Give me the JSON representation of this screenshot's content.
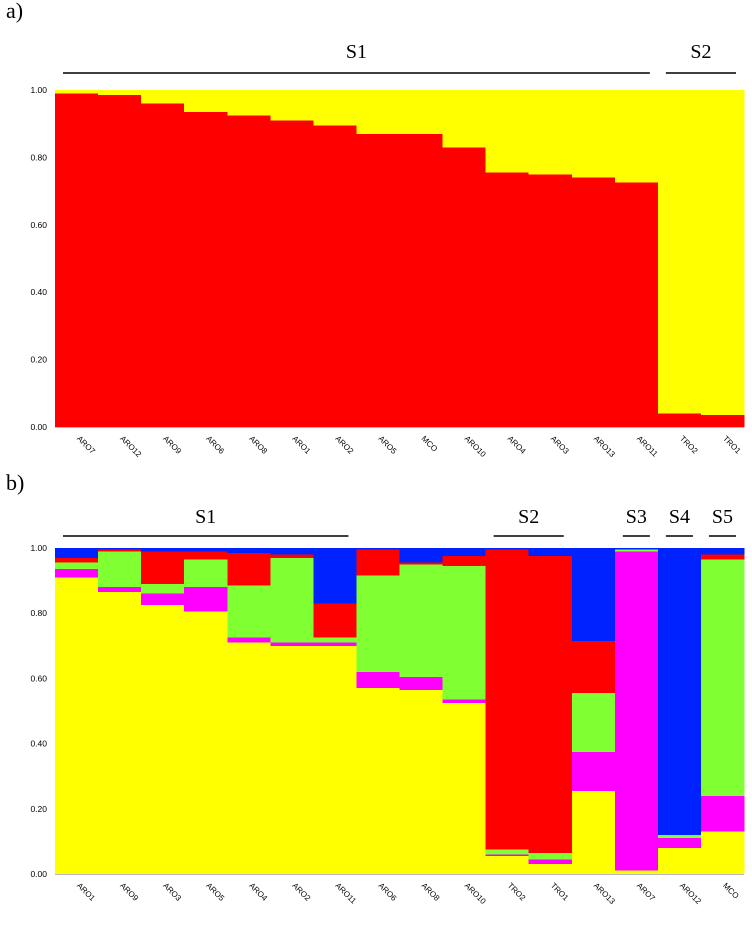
{
  "chart_data": [
    {
      "panel_label": "a)",
      "type": "bar",
      "stacked": true,
      "ylim": [
        0,
        1
      ],
      "yticks": [
        "0.00",
        "0.20",
        "0.40",
        "0.60",
        "0.80",
        "1.00"
      ],
      "colors": [
        "#ff0000",
        "#ffff00"
      ],
      "categories": [
        "ARO7",
        "ARO12",
        "ARO9",
        "ARO6",
        "ARO8",
        "ARO1",
        "ARO2",
        "ARO5",
        "MCO",
        "ARO10",
        "ARO4",
        "ARO3",
        "ARO13",
        "ARO11",
        "TRO2",
        "TRO1"
      ],
      "series": [
        {
          "values": [
            0.99,
            0.985,
            0.96,
            0.935,
            0.925,
            0.91,
            0.895,
            0.87,
            0.87,
            0.83,
            0.755,
            0.75,
            0.74,
            0.725,
            0.04,
            0.035
          ]
        },
        {
          "values": [
            0.01,
            0.015,
            0.04,
            0.065,
            0.075,
            0.09,
            0.105,
            0.13,
            0.13,
            0.17,
            0.245,
            0.25,
            0.26,
            0.275,
            0.96,
            0.965
          ]
        }
      ],
      "groups": [
        {
          "label": "S1",
          "from": 0,
          "to": 13
        },
        {
          "label": "S2",
          "from": 14,
          "to": 15
        }
      ]
    },
    {
      "panel_label": "b)",
      "type": "bar",
      "stacked": true,
      "ylim": [
        0,
        1
      ],
      "yticks": [
        "0.00",
        "0.20",
        "0.40",
        "0.60",
        "0.80",
        "1.00"
      ],
      "colors": [
        "#ffff00",
        "#ff00ff",
        "#80ff33",
        "#ff0000",
        "#0022ff"
      ],
      "categories": [
        "ARO1",
        "ARO9",
        "ARO3",
        "ARO5",
        "ARO4",
        "ARO2",
        "ARO11",
        "ARO6",
        "ARO8",
        "ARO10",
        "TRO2",
        "TRO1",
        "ARO13",
        "ARO7",
        "ARO12",
        "MCO"
      ],
      "series": [
        {
          "values": [
            0.91,
            0.865,
            0.825,
            0.805,
            0.71,
            0.7,
            0.7,
            0.57,
            0.565,
            0.525,
            0.055,
            0.03,
            0.255,
            0.01,
            0.08,
            0.13
          ]
        },
        {
          "values": [
            0.025,
            0.015,
            0.035,
            0.075,
            0.015,
            0.01,
            0.01,
            0.05,
            0.04,
            0.01,
            0.005,
            0.015,
            0.12,
            0.98,
            0.03,
            0.11
          ]
        },
        {
          "values": [
            0.02,
            0.11,
            0.03,
            0.085,
            0.16,
            0.26,
            0.015,
            0.295,
            0.345,
            0.41,
            0.015,
            0.02,
            0.18,
            0.005,
            0.01,
            0.725
          ]
        },
        {
          "values": [
            0.015,
            0.005,
            0.1,
            0.025,
            0.1,
            0.01,
            0.105,
            0.08,
            0.005,
            0.03,
            0.92,
            0.91,
            0.16,
            0.0,
            0.0,
            0.015
          ]
        },
        {
          "values": [
            0.03,
            0.005,
            0.01,
            0.01,
            0.015,
            0.02,
            0.17,
            0.005,
            0.045,
            0.025,
            0.005,
            0.025,
            0.285,
            0.005,
            0.88,
            0.02
          ]
        }
      ],
      "groups": [
        {
          "label": "S1",
          "from": 0,
          "to": 6
        },
        {
          "label": "S2",
          "from": 10,
          "to": 11
        },
        {
          "label": "S3",
          "from": 13,
          "to": 13
        },
        {
          "label": "S4",
          "from": 14,
          "to": 14
        },
        {
          "label": "S5",
          "from": 15,
          "to": 15
        }
      ]
    }
  ]
}
